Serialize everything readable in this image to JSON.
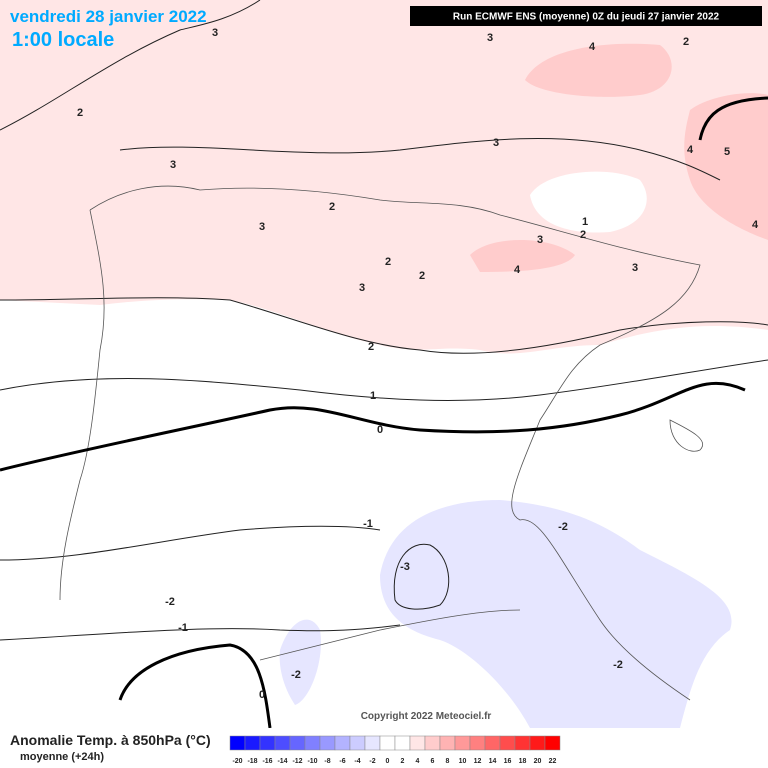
{
  "header": {
    "date": "vendredi 28 janvier 2022",
    "time": "1:00 locale",
    "run": "Run ECMWF ENS (moyenne) 0Z du jeudi 27 janvier 2022"
  },
  "contour_labels": [
    3,
    3,
    4,
    2,
    2,
    3,
    3,
    4,
    5,
    2,
    3,
    4,
    1,
    2,
    3,
    2,
    2,
    4,
    3,
    3,
    2,
    1,
    0,
    -1,
    -2,
    -3,
    -2,
    -1,
    -2,
    -2,
    0
  ],
  "legend": {
    "title": "Anomalie Temp. à 850hPa (°C)",
    "subtitle": "moyenne  (+24h)",
    "ticks": [
      -20,
      -18,
      -16,
      -14,
      -12,
      -10,
      -8,
      -6,
      -4,
      -2,
      0,
      2,
      4,
      6,
      8,
      10,
      12,
      14,
      16,
      18,
      20,
      22
    ],
    "colors": [
      "#0000ff",
      "#1a1aff",
      "#3333ff",
      "#4d4dff",
      "#6666ff",
      "#8080ff",
      "#9999ff",
      "#b3b3ff",
      "#ccccff",
      "#e6e6ff",
      "#ffffff",
      "#ffffff",
      "#ffe6e6",
      "#ffcccc",
      "#ffb3b3",
      "#ff9999",
      "#ff8080",
      "#ff6666",
      "#ff4d4d",
      "#ff3333",
      "#ff1a1a",
      "#ff0000"
    ]
  },
  "copyright": "Copyright 2022 Meteociel.fr"
}
